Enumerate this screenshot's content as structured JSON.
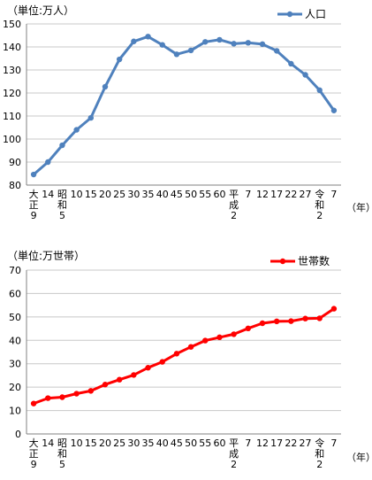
{
  "chart_data": [
    {
      "type": "line",
      "unit_label": "（単位:万人）",
      "year_unit": "（年）",
      "ylim": [
        80,
        150
      ],
      "yticks": [
        80,
        90,
        100,
        110,
        120,
        130,
        140,
        150
      ],
      "grid": "horizontal",
      "legend": "top-right",
      "color": "#4f81bd",
      "categories": [
        [
          "大",
          "正",
          "9"
        ],
        [
          "14"
        ],
        [
          "昭",
          "和",
          "5"
        ],
        [
          "10"
        ],
        [
          "15"
        ],
        [
          "20"
        ],
        [
          "25"
        ],
        [
          "30"
        ],
        [
          "35"
        ],
        [
          "40"
        ],
        [
          "45"
        ],
        [
          "50"
        ],
        [
          "55"
        ],
        [
          "60"
        ],
        [
          "平",
          "成",
          "2"
        ],
        [
          "7"
        ],
        [
          "12"
        ],
        [
          "17"
        ],
        [
          "22"
        ],
        [
          "27"
        ],
        [
          "令",
          "和",
          "2"
        ],
        [
          "7"
        ]
      ],
      "series": [
        {
          "name": "人口",
          "values": [
            84.6,
            90.0,
            97.3,
            104.0,
            109.2,
            122.7,
            134.6,
            142.4,
            144.5,
            140.9,
            136.8,
            138.5,
            142.2,
            143.1,
            141.4,
            141.8,
            141.2,
            138.3,
            132.7,
            127.9,
            121.2,
            112.4
          ]
        }
      ]
    },
    {
      "type": "line",
      "unit_label": "（単位:万世帯）",
      "year_unit": "（年）",
      "ylim": [
        0,
        70
      ],
      "yticks": [
        0,
        10,
        20,
        30,
        40,
        50,
        60,
        70
      ],
      "grid": "horizontal",
      "legend": "top-right",
      "color": "#ff0000",
      "categories": [
        [
          "大",
          "正",
          "9"
        ],
        [
          "14"
        ],
        [
          "昭",
          "和",
          "5"
        ],
        [
          "10"
        ],
        [
          "15"
        ],
        [
          "20"
        ],
        [
          "25"
        ],
        [
          "30"
        ],
        [
          "35"
        ],
        [
          "40"
        ],
        [
          "45"
        ],
        [
          "50"
        ],
        [
          "55"
        ],
        [
          "60"
        ],
        [
          "平",
          "成",
          "2"
        ],
        [
          "7"
        ],
        [
          "12"
        ],
        [
          "17"
        ],
        [
          "22"
        ],
        [
          "27"
        ],
        [
          "令",
          "和",
          "2"
        ],
        [
          "7"
        ]
      ],
      "series": [
        {
          "name": "世帯数",
          "values": [
            13.0,
            15.3,
            15.7,
            17.2,
            18.4,
            21.1,
            23.2,
            25.2,
            28.3,
            30.8,
            34.3,
            37.2,
            39.9,
            41.3,
            42.6,
            45.1,
            47.3,
            48.1,
            48.2,
            49.3,
            49.4,
            53.5
          ]
        }
      ]
    }
  ]
}
